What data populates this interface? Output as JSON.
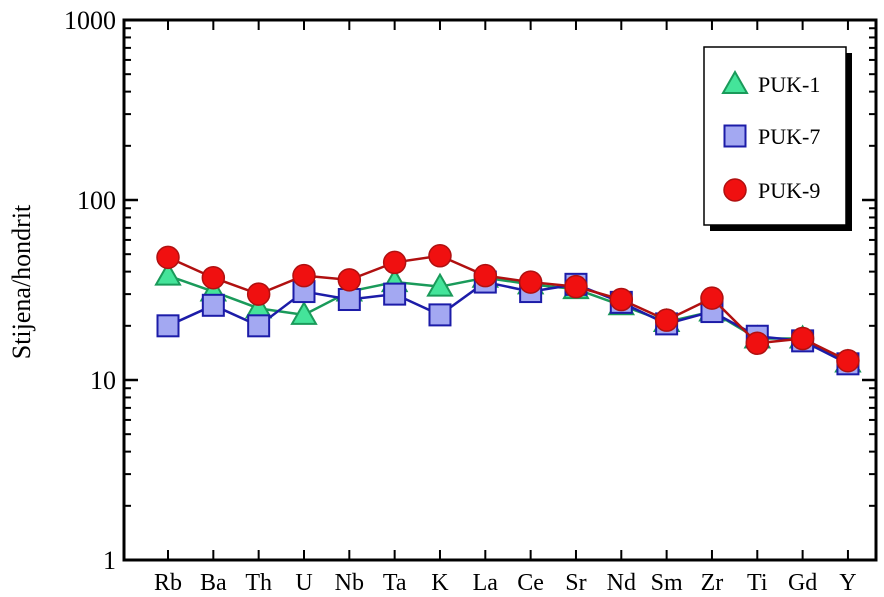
{
  "chart_data": {
    "type": "line",
    "title": "",
    "xlabel": "",
    "ylabel": "Stijena/hondrit",
    "yscale": "log",
    "ylim": [
      1,
      1000
    ],
    "yticks": [
      {
        "value": 1,
        "label": "1"
      },
      {
        "value": 10,
        "label": "10"
      },
      {
        "value": 100,
        "label": "100"
      },
      {
        "value": 1000,
        "label": "1000"
      }
    ],
    "grid": false,
    "legend_position": "top-right",
    "categories": [
      "Rb",
      "Ba",
      "Th",
      "U",
      "Nb",
      "Ta",
      "K",
      "La",
      "Ce",
      "Sr",
      "Nd",
      "Sm",
      "Zr",
      "Ti",
      "Gd",
      "Y"
    ],
    "series": [
      {
        "name": "PUK-1",
        "marker": "triangle",
        "line_color": "#1a9a5a",
        "fill_color": "#44e49a",
        "stroke_color": "#1a9a5a",
        "values": [
          38,
          31,
          25,
          23,
          31,
          35,
          33,
          37,
          34,
          32,
          26,
          21,
          24,
          17,
          17,
          12.5
        ]
      },
      {
        "name": "PUK-7",
        "marker": "square",
        "line_color": "#1c1ca8",
        "fill_color": "#a3a8f2",
        "stroke_color": "#1c1ca8",
        "values": [
          20,
          26,
          20,
          31,
          28,
          30,
          23,
          35,
          31,
          34,
          27,
          20.5,
          24,
          17.5,
          16.5,
          12.3
        ]
      },
      {
        "name": "PUK-9",
        "marker": "circle",
        "line_color": "#b01010",
        "fill_color": "#f01010",
        "stroke_color": "#b01010",
        "values": [
          48,
          37,
          30,
          38,
          36,
          45,
          49,
          38,
          35,
          33,
          28,
          21.5,
          28.5,
          16,
          17,
          12.8
        ]
      }
    ]
  }
}
